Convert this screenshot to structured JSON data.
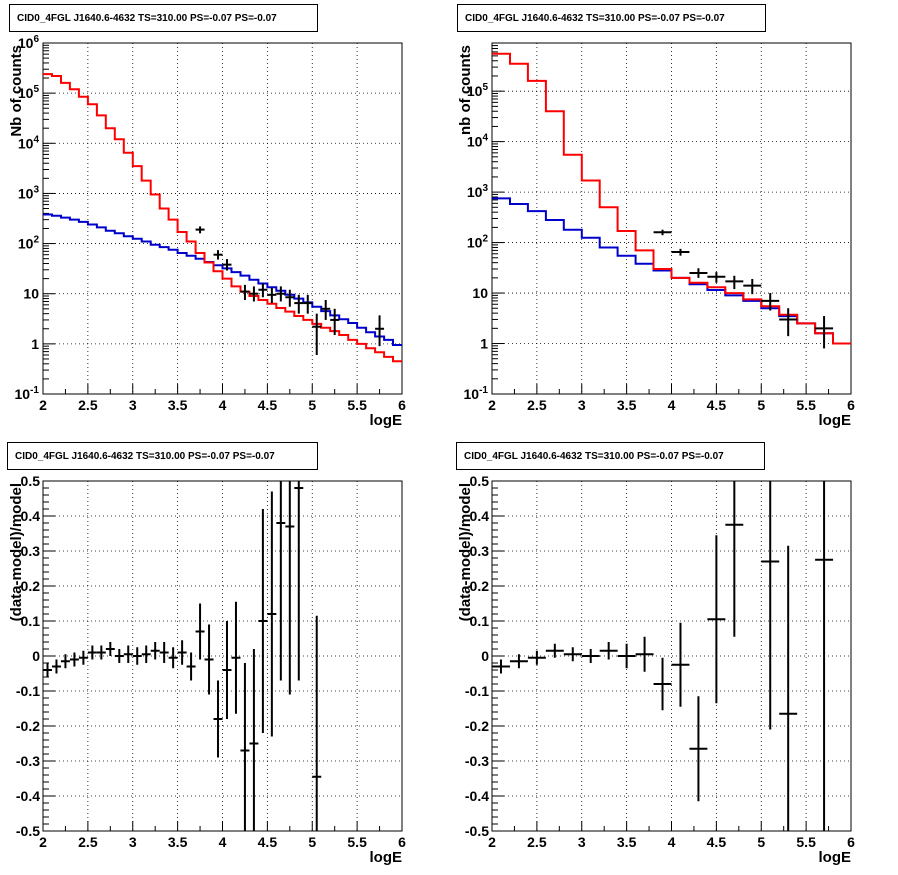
{
  "canvas": {
    "background": "#ffffff",
    "model_color": "#ff0000",
    "background_model_color": "#0000cc",
    "data_color": "#000000"
  },
  "chart_data": [
    {
      "type": "line",
      "title": "CID0_4FGL J1640.6-4632 TS=310.00 PS=-0.07 PS=-0.07",
      "xlabel": "logE",
      "ylabel": "Nb of counts",
      "xlim": [
        2,
        6
      ],
      "ylim": [
        0.1,
        1000000
      ],
      "log_y": true,
      "grid": true,
      "x_ticks": [
        "2",
        "2.5",
        "3",
        "3.5",
        "4",
        "4.5",
        "5",
        "5.5",
        "6"
      ],
      "y_ticks": [
        "10^-1",
        "1",
        "10",
        "10^2",
        "10^3",
        "10^4",
        "10^5",
        "10^6"
      ],
      "bin_edges": [
        2.0,
        2.1,
        2.2,
        2.3,
        2.4,
        2.5,
        2.6,
        2.7,
        2.8,
        2.9,
        3.0,
        3.1,
        3.2,
        3.3,
        3.4,
        3.5,
        3.6,
        3.7,
        3.8,
        3.9,
        4.0,
        4.1,
        4.2,
        4.3,
        4.4,
        4.5,
        4.6,
        4.7,
        4.8,
        4.9,
        5.0,
        5.1,
        5.2,
        5.3,
        5.4,
        5.5,
        5.6,
        5.7,
        5.8,
        5.9,
        6.0
      ],
      "series": [
        {
          "values": [
            240000,
            220000,
            160000,
            120000,
            85000,
            60000,
            36000,
            20000,
            12000,
            6500,
            3500,
            1800,
            950,
            500,
            300,
            170,
            110,
            65,
            42,
            28,
            20,
            14,
            11,
            9,
            7.5,
            6.3,
            5.2,
            4.4,
            3.6,
            3.0,
            2.5,
            2.1,
            1.8,
            1.5,
            1.2,
            1.0,
            0.82,
            0.68,
            0.55,
            0.45
          ]
        },
        {
          "values": [
            380,
            360,
            330,
            300,
            270,
            240,
            210,
            180,
            160,
            140,
            125,
            110,
            95,
            85,
            75,
            65,
            57,
            50,
            43,
            37,
            32,
            27,
            23,
            19,
            16,
            13.5,
            11.5,
            9.5,
            8,
            6.7,
            5.5,
            4.5,
            3.7,
            3.1,
            2.6,
            2.1,
            1.7,
            1.4,
            1.2,
            0.95
          ]
        },
        {
          "points": [
            {
              "x": 3.75,
              "y": 190,
              "ylo": 160,
              "yhi": 220
            },
            {
              "x": 3.95,
              "y": 60,
              "ylo": 48,
              "yhi": 74
            },
            {
              "x": 4.05,
              "y": 38,
              "ylo": 29,
              "yhi": 49
            },
            {
              "x": 4.25,
              "y": 11,
              "ylo": 7.5,
              "yhi": 15
            },
            {
              "x": 4.35,
              "y": 10,
              "ylo": 7,
              "yhi": 14
            },
            {
              "x": 4.45,
              "y": 12,
              "ylo": 8.5,
              "yhi": 16
            },
            {
              "x": 4.55,
              "y": 9.5,
              "ylo": 6.5,
              "yhi": 13
            },
            {
              "x": 4.65,
              "y": 10,
              "ylo": 7,
              "yhi": 14
            },
            {
              "x": 4.75,
              "y": 8.5,
              "ylo": 5.5,
              "yhi": 12
            },
            {
              "x": 4.85,
              "y": 6.5,
              "ylo": 4,
              "yhi": 9.5
            },
            {
              "x": 4.95,
              "y": 6.5,
              "ylo": 4,
              "yhi": 9.5
            },
            {
              "x": 5.05,
              "y": 2.2,
              "ylo": 0.6,
              "yhi": 4
            },
            {
              "x": 5.15,
              "y": 5,
              "ylo": 3,
              "yhi": 7.5
            },
            {
              "x": 5.25,
              "y": 3,
              "ylo": 1.5,
              "yhi": 5
            },
            {
              "x": 5.75,
              "y": 2,
              "ylo": 0.9,
              "yhi": 3.7
            }
          ]
        }
      ]
    },
    {
      "type": "line",
      "title": "CID0_4FGL J1640.6-4632 TS=310.00 PS=-0.07 PS=-0.07",
      "xlabel": "logE",
      "ylabel": "nb of counts",
      "xlim": [
        2,
        6
      ],
      "ylim": [
        0.1,
        900000
      ],
      "log_y": true,
      "grid": true,
      "x_ticks": [
        "2",
        "2.5",
        "3",
        "3.5",
        "4",
        "4.5",
        "5",
        "5.5",
        "6"
      ],
      "y_ticks": [
        "10^-1",
        "1",
        "10",
        "10^2",
        "10^3",
        "10^4",
        "10^5"
      ],
      "bin_edges": [
        2.0,
        2.2,
        2.4,
        2.6,
        2.8,
        3.0,
        3.2,
        3.4,
        3.6,
        3.8,
        4.0,
        4.2,
        4.4,
        4.6,
        4.8,
        5.0,
        5.2,
        5.4,
        5.6,
        5.8,
        6.0
      ],
      "series": [
        {
          "values": [
            550000,
            350000,
            160000,
            40000,
            5500,
            1700,
            500,
            170,
            70,
            30,
            20,
            16,
            13,
            10,
            7.5,
            5.5,
            3.7,
            2.5,
            1.6,
            1.0
          ]
        },
        {
          "values": [
            750,
            580,
            420,
            280,
            180,
            125,
            80,
            55,
            38,
            28,
            20,
            15,
            11.5,
            9,
            7,
            5,
            3.5,
            2.5,
            1.6,
            1.0
          ]
        },
        {
          "points": [
            {
              "x": 3.9,
              "y": 160,
              "ylo": 140,
              "yhi": 180
            },
            {
              "x": 4.1,
              "y": 65,
              "ylo": 55,
              "yhi": 75
            },
            {
              "x": 4.3,
              "y": 25,
              "ylo": 20,
              "yhi": 31
            },
            {
              "x": 4.5,
              "y": 21,
              "ylo": 16,
              "yhi": 26
            },
            {
              "x": 4.7,
              "y": 17,
              "ylo": 12,
              "yhi": 22
            },
            {
              "x": 4.9,
              "y": 14,
              "ylo": 9.5,
              "yhi": 19
            },
            {
              "x": 5.1,
              "y": 7,
              "ylo": 4.5,
              "yhi": 10
            },
            {
              "x": 5.3,
              "y": 3,
              "ylo": 1.4,
              "yhi": 5
            },
            {
              "x": 5.7,
              "y": 2,
              "ylo": 0.8,
              "yhi": 3.5
            }
          ]
        }
      ]
    },
    {
      "type": "scatter",
      "title": "CID0_4FGL J1640.6-4632 TS=310.00 PS=-0.07 PS=-0.07",
      "xlabel": "logE",
      "ylabel": "(data-model)/model",
      "xlim": [
        2,
        6
      ],
      "ylim": [
        -0.5,
        0.5
      ],
      "grid": true,
      "x_ticks": [
        "2",
        "2.5",
        "3",
        "3.5",
        "4",
        "4.5",
        "5",
        "5.5",
        "6"
      ],
      "y_ticks": [
        "-0.5",
        "-0.4",
        "-0.3",
        "-0.2",
        "-0.1",
        "0",
        "0.1",
        "0.2",
        "0.3",
        "0.4",
        "0.5"
      ],
      "xerr": 0.05,
      "points": [
        {
          "x": 2.05,
          "y": -0.04,
          "err": 0.02
        },
        {
          "x": 2.15,
          "y": -0.03,
          "err": 0.02
        },
        {
          "x": 2.25,
          "y": -0.015,
          "err": 0.02
        },
        {
          "x": 2.35,
          "y": -0.01,
          "err": 0.02
        },
        {
          "x": 2.45,
          "y": -0.005,
          "err": 0.02
        },
        {
          "x": 2.55,
          "y": 0.01,
          "err": 0.02
        },
        {
          "x": 2.65,
          "y": 0.01,
          "err": 0.02
        },
        {
          "x": 2.75,
          "y": 0.02,
          "err": 0.02
        },
        {
          "x": 2.85,
          "y": 0.0,
          "err": 0.02
        },
        {
          "x": 2.95,
          "y": 0.005,
          "err": 0.025
        },
        {
          "x": 3.05,
          "y": 0.0,
          "err": 0.025
        },
        {
          "x": 3.15,
          "y": 0.005,
          "err": 0.025
        },
        {
          "x": 3.25,
          "y": 0.015,
          "err": 0.025
        },
        {
          "x": 3.35,
          "y": 0.01,
          "err": 0.03
        },
        {
          "x": 3.45,
          "y": -0.005,
          "err": 0.03
        },
        {
          "x": 3.55,
          "y": 0.01,
          "err": 0.035
        },
        {
          "x": 3.65,
          "y": -0.03,
          "err": 0.04
        },
        {
          "x": 3.75,
          "y": 0.07,
          "err": 0.08
        },
        {
          "x": 3.85,
          "y": -0.01,
          "err": 0.1
        },
        {
          "x": 3.95,
          "y": -0.18,
          "err": 0.11
        },
        {
          "x": 4.05,
          "y": -0.04,
          "err": 0.14
        },
        {
          "x": 4.15,
          "y": -0.005,
          "err": 0.16
        },
        {
          "x": 4.25,
          "y": -0.27,
          "err": 0.25
        },
        {
          "x": 4.35,
          "y": -0.25,
          "err": 0.27
        },
        {
          "x": 4.45,
          "y": 0.1,
          "err": 0.32
        },
        {
          "x": 4.55,
          "y": 0.12,
          "err": 0.35
        },
        {
          "x": 4.65,
          "y": 0.38,
          "err": 0.45
        },
        {
          "x": 4.75,
          "y": 0.37,
          "err": 0.48
        },
        {
          "x": 4.85,
          "y": 0.48,
          "err": 0.55
        },
        {
          "x": 5.05,
          "y": -0.345,
          "err": 0.46
        }
      ]
    },
    {
      "type": "scatter",
      "title": "CID0_4FGL J1640.6-4632 TS=310.00 PS=-0.07 PS=-0.07",
      "xlabel": "logE",
      "ylabel": "(data-model)/model",
      "xlim": [
        2,
        6
      ],
      "ylim": [
        -0.5,
        0.5
      ],
      "grid": true,
      "x_ticks": [
        "2",
        "2.5",
        "3",
        "3.5",
        "4",
        "4.5",
        "5",
        "5.5",
        "6"
      ],
      "y_ticks": [
        "-0.5",
        "-0.4",
        "-0.3",
        "-0.2",
        "-0.1",
        "0",
        "0.1",
        "0.2",
        "0.3",
        "0.4",
        "0.5"
      ],
      "xerr": 0.1,
      "points": [
        {
          "x": 2.1,
          "y": -0.03,
          "err": 0.02
        },
        {
          "x": 2.3,
          "y": -0.015,
          "err": 0.02
        },
        {
          "x": 2.5,
          "y": -0.005,
          "err": 0.02
        },
        {
          "x": 2.7,
          "y": 0.015,
          "err": 0.02
        },
        {
          "x": 2.9,
          "y": 0.005,
          "err": 0.02
        },
        {
          "x": 3.1,
          "y": 0.0,
          "err": 0.02
        },
        {
          "x": 3.3,
          "y": 0.015,
          "err": 0.025
        },
        {
          "x": 3.5,
          "y": 0.0,
          "err": 0.035
        },
        {
          "x": 3.7,
          "y": 0.005,
          "err": 0.05
        },
        {
          "x": 3.9,
          "y": -0.08,
          "err": 0.075
        },
        {
          "x": 4.1,
          "y": -0.025,
          "err": 0.12
        },
        {
          "x": 4.3,
          "y": -0.265,
          "err": 0.15
        },
        {
          "x": 4.5,
          "y": 0.105,
          "err": 0.24
        },
        {
          "x": 4.7,
          "y": 0.375,
          "err": 0.32
        },
        {
          "x": 5.1,
          "y": 0.27,
          "err": 0.48
        },
        {
          "x": 5.3,
          "y": -0.165,
          "err": 0.48
        },
        {
          "x": 5.7,
          "y": 0.275,
          "err": 0.8
        }
      ]
    }
  ]
}
